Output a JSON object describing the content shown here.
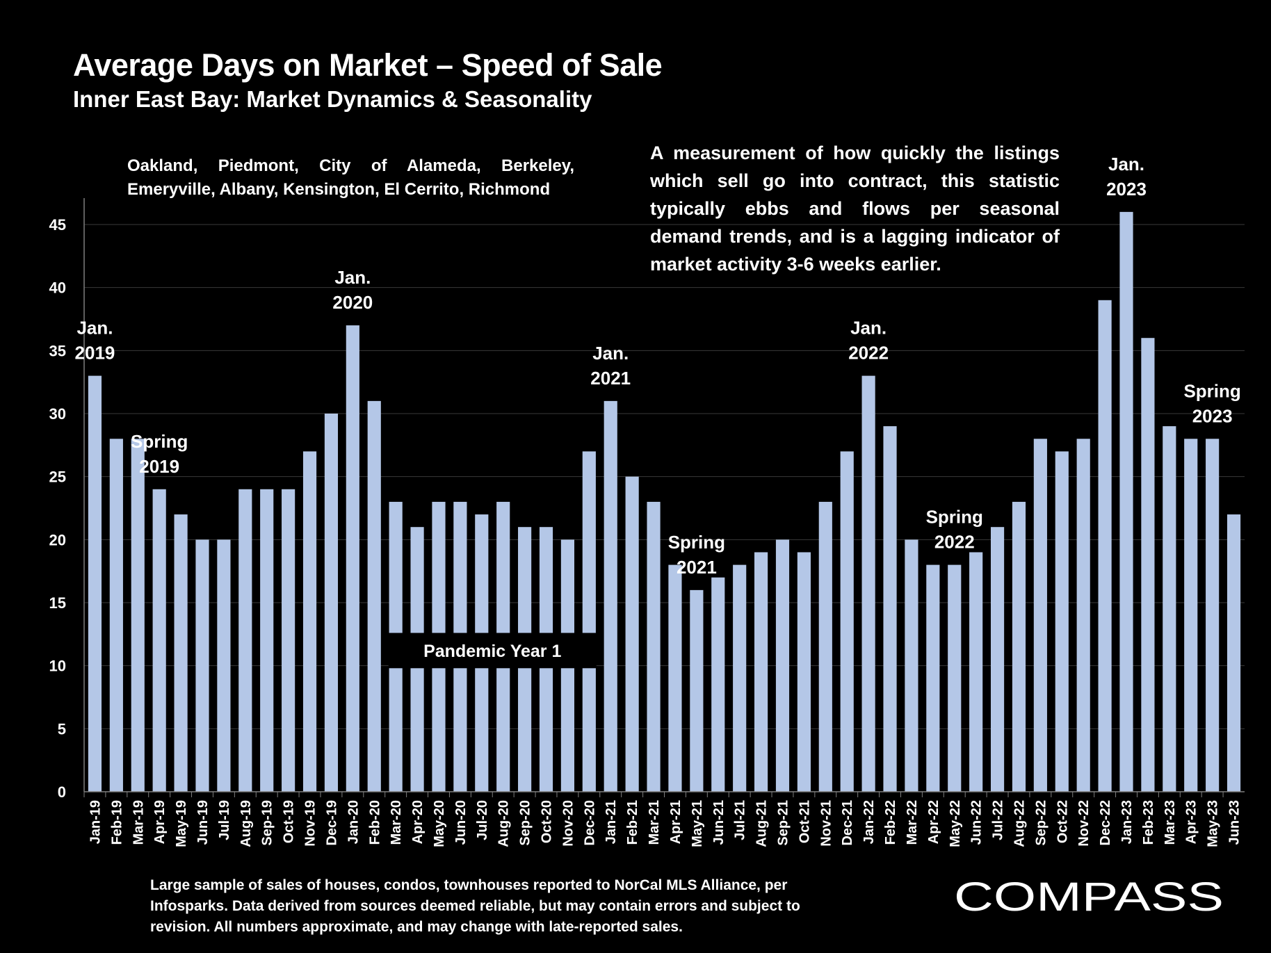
{
  "header": {
    "title": "Average Days on Market – Speed of Sale",
    "subtitle": "Inner East Bay: Market Dynamics & Seasonality"
  },
  "cities_note": "Oakland, Piedmont, City of Alameda, Berkeley, Emeryville, Albany, Kensington, El Cerrito, Richmond",
  "description": "A measurement of how quickly the listings which sell go into contract, this statistic typically ebbs and flows per seasonal demand trends, and is a lagging indicator of market activity 3-6 weeks earlier.",
  "footnote": "Large sample of sales of houses, condos, townhouses reported to NorCal MLS Alliance, per Infosparks. Data derived from sources deemed reliable, but may contain errors and subject to revision. All numbers approximate, and may change with late-reported sales.",
  "brand": {
    "name": "COMPASS"
  },
  "colors": {
    "background": "#000000",
    "bar": "#b4c7e7",
    "text": "#ffffff",
    "grid": "#3a3a3a"
  },
  "chart_data": {
    "type": "bar",
    "categories": [
      "Jan-19",
      "Feb-19",
      "Mar-19",
      "Apr-19",
      "May-19",
      "Jun-19",
      "Jul-19",
      "Aug-19",
      "Sep-19",
      "Oct-19",
      "Nov-19",
      "Dec-19",
      "Jan-20",
      "Feb-20",
      "Mar-20",
      "Apr-20",
      "May-20",
      "Jun-20",
      "Jul-20",
      "Aug-20",
      "Sep-20",
      "Oct-20",
      "Nov-20",
      "Dec-20",
      "Jan-21",
      "Feb-21",
      "Mar-21",
      "Apr-21",
      "May-21",
      "Jun-21",
      "Jul-21",
      "Aug-21",
      "Sep-21",
      "Oct-21",
      "Nov-21",
      "Dec-21",
      "Jan-22",
      "Feb-22",
      "Mar-22",
      "Apr-22",
      "May-22",
      "Jun-22",
      "Jul-22",
      "Aug-22",
      "Sep-22",
      "Oct-22",
      "Nov-22",
      "Dec-22",
      "Jan-23",
      "Feb-23",
      "Mar-23",
      "Apr-23",
      "May-23",
      "Jun-23"
    ],
    "values": [
      33,
      28,
      28,
      24,
      22,
      20,
      20,
      24,
      24,
      24,
      27,
      30,
      37,
      31,
      23,
      21,
      23,
      23,
      22,
      23,
      21,
      21,
      20,
      27,
      31,
      25,
      23,
      18,
      16,
      17,
      18,
      19,
      20,
      19,
      23,
      27,
      33,
      29,
      20,
      18,
      18,
      19,
      21,
      23,
      28,
      27,
      28,
      39,
      46,
      36,
      29,
      28,
      28,
      22
    ],
    "ylim": [
      0,
      45
    ],
    "yticks": [
      0,
      5,
      10,
      15,
      20,
      25,
      30,
      35,
      40,
      45
    ],
    "grid": true,
    "annotations": [
      {
        "lines": [
          "Jan.",
          "2019"
        ],
        "category": "Jan-19"
      },
      {
        "lines": [
          "Spring",
          "2019"
        ],
        "category": "Apr-19"
      },
      {
        "lines": [
          "Jan.",
          "2020"
        ],
        "category": "Jan-20"
      },
      {
        "lines": [
          "Jan.",
          "2021"
        ],
        "category": "Jan-21"
      },
      {
        "lines": [
          "Spring",
          "2021"
        ],
        "category": "May-21"
      },
      {
        "lines": [
          "Jan.",
          "2022"
        ],
        "category": "Jan-22"
      },
      {
        "lines": [
          "Spring",
          "2022"
        ],
        "category": "May-22"
      },
      {
        "lines": [
          "Jan.",
          "2023"
        ],
        "category": "Jan-23"
      },
      {
        "lines": [
          "Spring",
          "2023"
        ],
        "category": "May-23"
      }
    ],
    "period_label": {
      "text": "Pandemic Year 1",
      "from": "Mar-20",
      "to": "Dec-20"
    }
  }
}
